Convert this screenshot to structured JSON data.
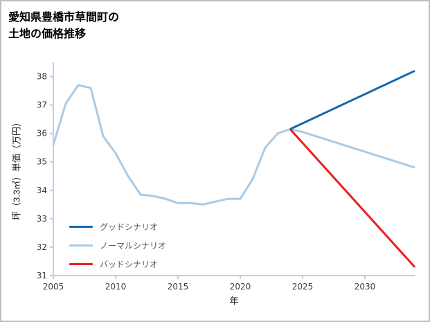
{
  "chart_data": {
    "type": "line",
    "title_lines": [
      "愛知県豊橋市草間町の",
      "土地の価格推移"
    ],
    "xlabel": "年",
    "ylabel": "坪（3.3㎡）単価（万円）",
    "xlim": [
      2005,
      2034
    ],
    "ylim": [
      31,
      38.5
    ],
    "xticks": [
      2005,
      2010,
      2015,
      2020,
      2025,
      2030
    ],
    "yticks": [
      31,
      32,
      33,
      34,
      35,
      36,
      37,
      38
    ],
    "grid": false,
    "legend_position": "lower-left-inside",
    "axis_color": "#aecde9",
    "tick_label_color": "#3d3d3d",
    "legend_text_color": "#595959",
    "series": [
      {
        "name": "グッドシナリオ",
        "color": "#1467af",
        "points": [
          [
            2024,
            36.15
          ],
          [
            2034,
            38.2
          ]
        ]
      },
      {
        "name": "ノーマルシナリオ",
        "color": "#a8cbe8",
        "points": [
          [
            2005,
            35.6
          ],
          [
            2006,
            37.05
          ],
          [
            2007,
            37.7
          ],
          [
            2008,
            37.6
          ],
          [
            2009,
            35.9
          ],
          [
            2010,
            35.3
          ],
          [
            2011,
            34.5
          ],
          [
            2012,
            33.85
          ],
          [
            2013,
            33.8
          ],
          [
            2014,
            33.7
          ],
          [
            2015,
            33.55
          ],
          [
            2016,
            33.55
          ],
          [
            2017,
            33.5
          ],
          [
            2018,
            33.6
          ],
          [
            2019,
            33.7
          ],
          [
            2020,
            33.7
          ],
          [
            2021,
            34.4
          ],
          [
            2022,
            35.5
          ],
          [
            2023,
            36.0
          ],
          [
            2024,
            36.15
          ],
          [
            2025,
            36.05
          ],
          [
            2034,
            34.8
          ]
        ]
      },
      {
        "name": "バッドシナリオ",
        "color": "#ec1c1c",
        "points": [
          [
            2024,
            36.15
          ],
          [
            2034,
            31.3
          ]
        ]
      }
    ]
  }
}
